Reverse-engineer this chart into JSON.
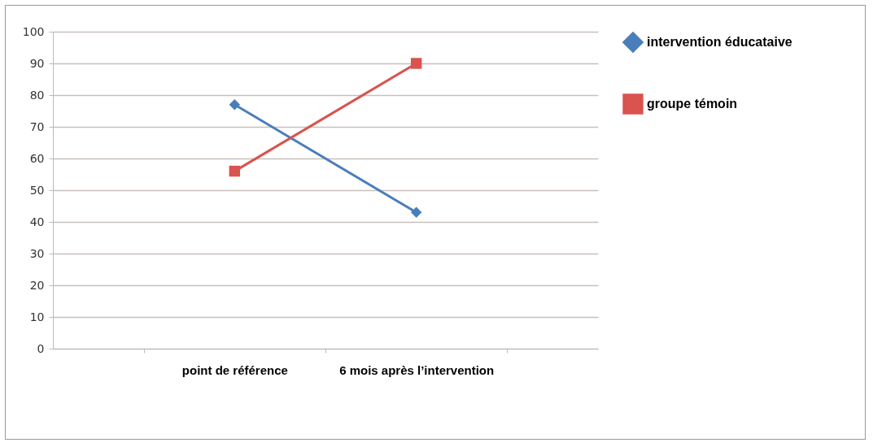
{
  "chart_data": {
    "type": "line",
    "categories": [
      "point de référence",
      "6 mois après l’intervention"
    ],
    "series": [
      {
        "name": "intervention éducataive",
        "color": "#4a7ebb",
        "values": [
          77,
          43
        ],
        "marker": "diamond"
      },
      {
        "name": "groupe témoin",
        "color": "#d9534f",
        "values": [
          56,
          90
        ],
        "marker": "square"
      }
    ],
    "ylim": [
      0,
      100
    ],
    "yticks": [
      0,
      10,
      20,
      30,
      40,
      50,
      60,
      70,
      80,
      90,
      100
    ],
    "grid": "y",
    "legend": "right"
  }
}
